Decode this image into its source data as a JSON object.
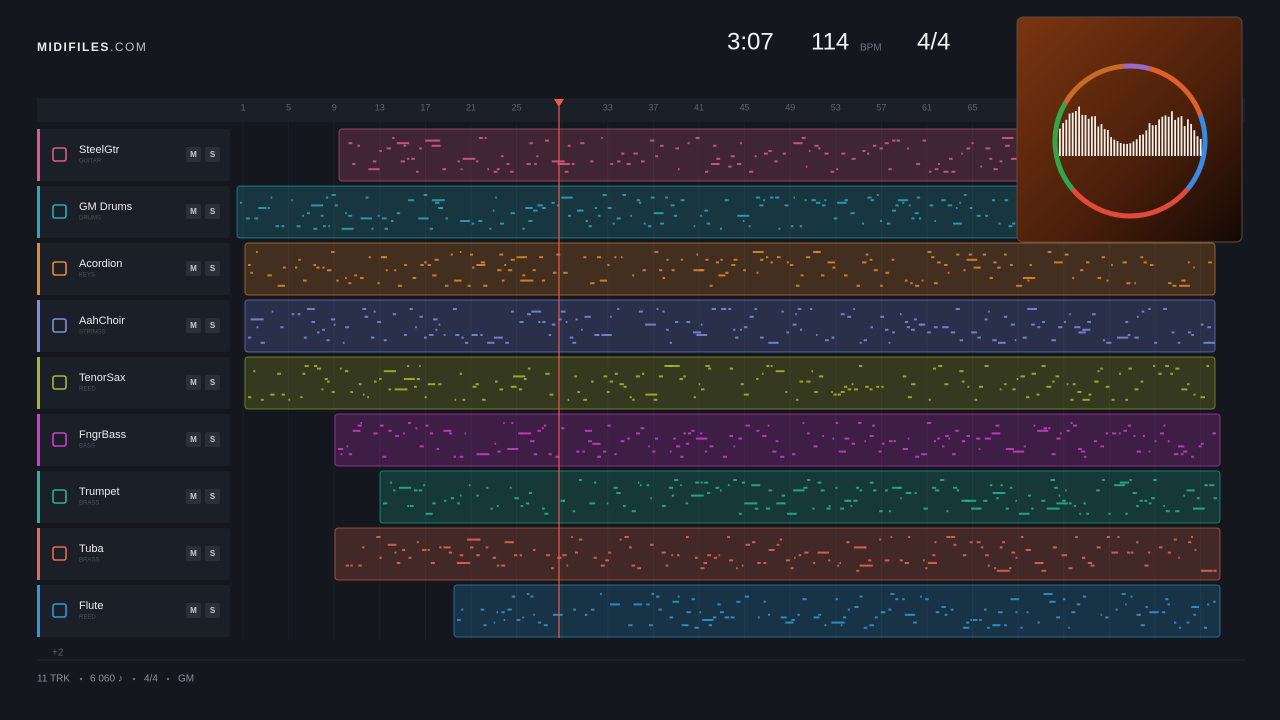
{
  "header": {
    "brand": "MIDIFILES",
    "domain": ".COM",
    "time": "3:07",
    "tempo": "114",
    "tempo_unit": "BPM",
    "time_signature": "4/4"
  },
  "ruler": {
    "bars": [
      1,
      5,
      9,
      13,
      17,
      21,
      25,
      33,
      37,
      41,
      45,
      49,
      53,
      57,
      61,
      65
    ]
  },
  "tracks": [
    {
      "name": "SteelGtr",
      "family": "GUITAR",
      "mute": "M",
      "solo": "S"
    },
    {
      "name": "GM Drums",
      "family": "DRUMS",
      "mute": "M",
      "solo": "S"
    },
    {
      "name": "Acordion",
      "family": "KEYS",
      "mute": "M",
      "solo": "S"
    },
    {
      "name": "AahChoir",
      "family": "STRINGS",
      "mute": "M",
      "solo": "S"
    },
    {
      "name": "TenorSax",
      "family": "REED",
      "mute": "M",
      "solo": "S"
    },
    {
      "name": "FngrBass",
      "family": "BASS",
      "mute": "M",
      "solo": "S"
    },
    {
      "name": "Trumpet",
      "family": "BRASS",
      "mute": "M",
      "solo": "S"
    },
    {
      "name": "Tuba",
      "family": "BRASS",
      "mute": "M",
      "solo": "S"
    },
    {
      "name": "Flute",
      "family": "REED",
      "mute": "M",
      "solo": "S"
    }
  ],
  "more_tracks": "+2",
  "footer": {
    "tracks": "11 TRK",
    "notes": "6 060 ♪",
    "time_signature": "4/4",
    "standard": "GM"
  }
}
